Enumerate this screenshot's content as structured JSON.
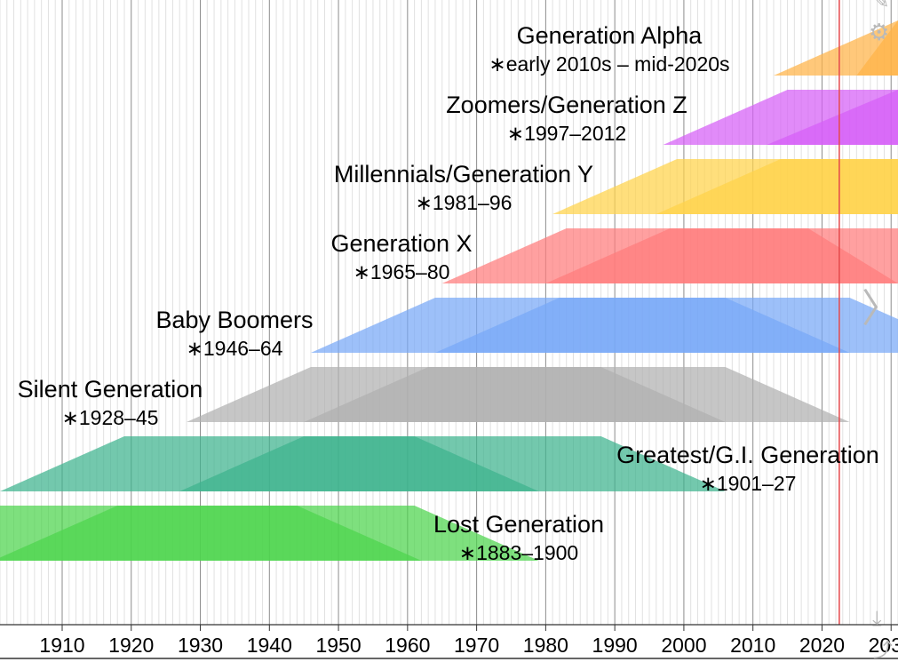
{
  "chart_data": {
    "type": "area",
    "title": "",
    "xlabel": "",
    "ylabel": "",
    "xlim": [
      1901,
      2031
    ],
    "grid": true,
    "current_year_marker": 2022.5,
    "x_ticks": [
      1910,
      1920,
      1930,
      1940,
      1950,
      1960,
      1970,
      1980,
      1990,
      2000,
      2010,
      2020,
      2030
    ],
    "x_tick_labels": [
      "1910",
      "1920",
      "1930",
      "1940",
      "1950",
      "1960",
      "1970",
      "1980",
      "1990",
      "2000",
      "2010",
      "2020",
      "2030"
    ],
    "series": [
      {
        "name": "Generation Alpha",
        "years_label": "∗early 2010s – mid-2020s",
        "birth": [
          2013,
          2025
        ],
        "outer": [
          2013,
          2031,
          2031,
          2031
        ],
        "inner": [
          2025,
          2031,
          2031,
          2031
        ],
        "color": "#ffb347"
      },
      {
        "name": "Zoomers/Generation Z",
        "years_label": "∗1997–2012",
        "birth": [
          1997,
          2012
        ],
        "outer": [
          1997,
          2015,
          2031,
          2031
        ],
        "inner": [
          2012,
          2031,
          2031,
          2031
        ],
        "color": "#d65ef7"
      },
      {
        "name": "Millennials/Generation Y",
        "years_label": "∗1981–96",
        "birth": [
          1981,
          1996
        ],
        "outer": [
          1981,
          1999,
          2031,
          2031
        ],
        "inner": [
          1996,
          2014,
          2031,
          2031
        ],
        "color": "#ffd24a"
      },
      {
        "name": "Generation X",
        "years_label": "∗1965–80",
        "birth": [
          1965,
          1980
        ],
        "outer": [
          1965,
          1983,
          2031,
          2031
        ],
        "inner": [
          1980,
          1998,
          2018,
          2031
        ],
        "color": "#ff7b7b"
      },
      {
        "name": "Baby Boomers",
        "years_label": "∗1946–64",
        "birth": [
          1946,
          1964
        ],
        "outer": [
          1946,
          1964,
          2024,
          2042
        ],
        "inner": [
          1964,
          1982,
          2006,
          2024
        ],
        "color": "#77a8f7"
      },
      {
        "name": "Silent Generation",
        "years_label": "∗1928–45",
        "birth": [
          1928,
          1945
        ],
        "outer": [
          1928,
          1946,
          2006,
          2024
        ],
        "inner": [
          1945,
          1963,
          1988,
          2006
        ],
        "color": "#b0b0b0"
      },
      {
        "name": "Greatest/G.I. Generation",
        "years_label": "∗1901–27",
        "birth": [
          1901,
          1927
        ],
        "outer": [
          1901,
          1919,
          1988,
          2006
        ],
        "inner": [
          1927,
          1945,
          1961,
          1979
        ],
        "color": "#3db38d"
      },
      {
        "name": "Lost Generation",
        "years_label": "∗1883–1900",
        "birth": [
          1883,
          1900
        ],
        "outer": [
          1883,
          1901,
          1961,
          1979
        ],
        "inner": [
          1900,
          1918,
          1944,
          1962
        ],
        "color": "#4cd44c"
      }
    ]
  },
  "toolbar": {
    "edit_icon": "✎",
    "settings_icon": "⚙",
    "next_icon": "〉",
    "download_icon": "⤓",
    "share_icon": "⤴"
  }
}
